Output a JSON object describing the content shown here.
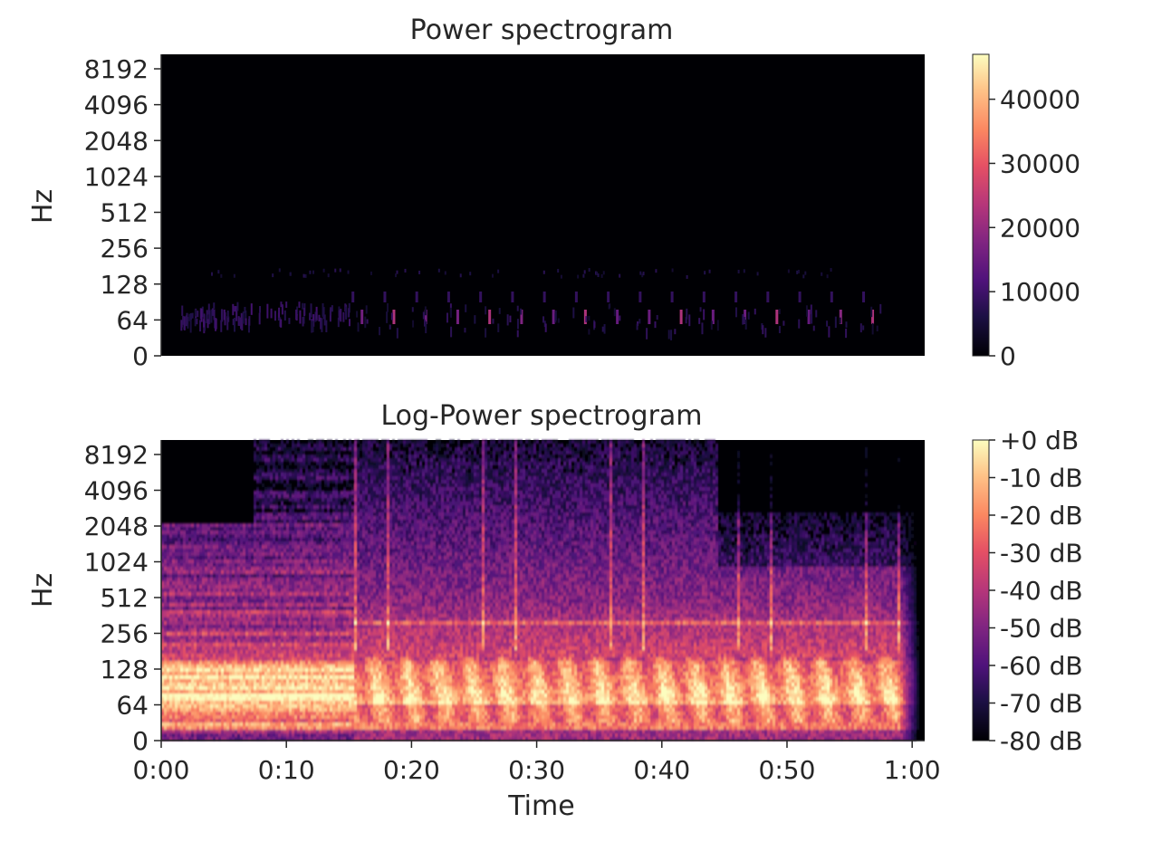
{
  "chart_data": [
    {
      "type": "heatmap",
      "title": "Power spectrogram",
      "ylabel": "Hz",
      "xlabel": "",
      "y_scale": "log",
      "yticks": [
        "0",
        "64",
        "128",
        "256",
        "512",
        "1024",
        "2048",
        "4096",
        "8192"
      ],
      "xticks": [],
      "xlim": [
        0,
        61
      ],
      "colormap": "magma",
      "colorbar": {
        "range": [
          0,
          47000
        ],
        "ticks": [
          "0",
          "10000",
          "20000",
          "30000",
          "40000"
        ],
        "tick_values": [
          0,
          10000,
          20000,
          30000,
          40000
        ]
      },
      "colors": {
        "low": "#000004",
        "mid": "#b73779",
        "high": "#fcfdbf"
      },
      "description_values": {
        "peak_power": 28000,
        "energy_band_hz": [
          45,
          180
        ]
      }
    },
    {
      "type": "heatmap",
      "title": "Log-Power spectrogram",
      "ylabel": "Hz",
      "xlabel": "Time",
      "y_scale": "log",
      "yticks": [
        "0",
        "64",
        "128",
        "256",
        "512",
        "1024",
        "2048",
        "4096",
        "8192"
      ],
      "xticks": [
        "0:00",
        "0:10",
        "0:20",
        "0:30",
        "0:40",
        "0:50",
        "1:00"
      ],
      "xtick_values": [
        0,
        10,
        20,
        30,
        40,
        50,
        60
      ],
      "xlim": [
        0,
        61
      ],
      "colormap": "magma",
      "colorbar": {
        "range": [
          -80,
          0
        ],
        "ticks": [
          "+0 dB",
          "-10 dB",
          "-20 dB",
          "-30 dB",
          "-40 dB",
          "-50 dB",
          "-60 dB",
          "-70 dB",
          "-80 dB"
        ],
        "tick_values": [
          0,
          -10,
          -20,
          -30,
          -40,
          -50,
          -60,
          -70,
          -80
        ]
      },
      "colors": {
        "low": "#000004",
        "mid": "#b73779",
        "high": "#fcfdbf"
      }
    }
  ]
}
